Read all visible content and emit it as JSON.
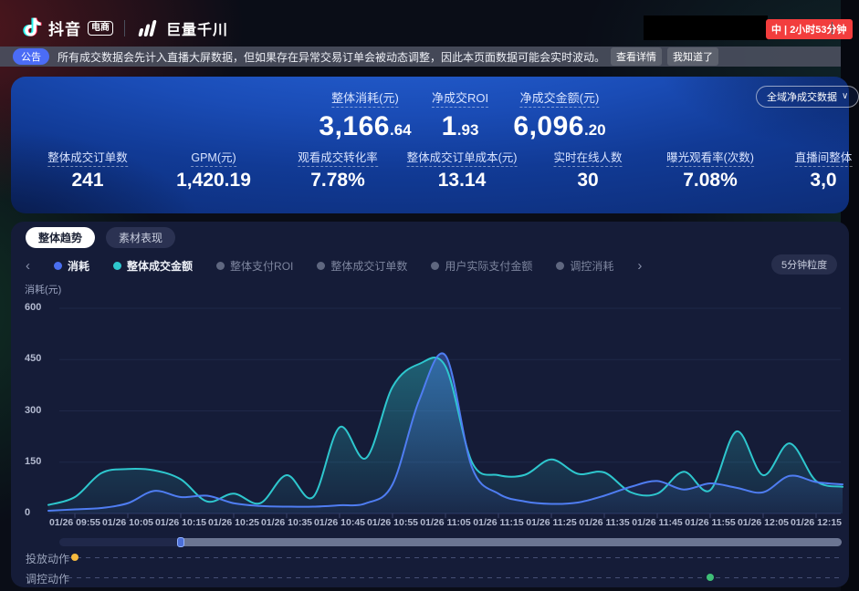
{
  "header": {
    "brand_douyin": "抖音",
    "brand_badge": "电商",
    "brand_qianchuan": "巨量千川",
    "live_badge": "中 | 2小时53分钟"
  },
  "notice": {
    "badge": "公告",
    "text": "所有成交数据会先计入直播大屏数据，但如果存在异常交易订单会被动态调整，因此本页面数据可能会实时波动。",
    "detail_button": "查看详情",
    "ack_button": "我知道了"
  },
  "overview": {
    "selector": "全域净成交数据",
    "primary": [
      {
        "label": "整体消耗(元)",
        "int": "3,166",
        "dec": ".64"
      },
      {
        "label": "净成交ROI",
        "int": "1",
        "dec": ".93"
      },
      {
        "label": "净成交金额(元)",
        "int": "6,096",
        "dec": ".20"
      }
    ],
    "secondary": [
      {
        "label": "整体成交订单数",
        "value": "241"
      },
      {
        "label": "GPM(元)",
        "value": "1,420.19"
      },
      {
        "label": "观看成交转化率",
        "value": "7.78%"
      },
      {
        "label": "整体成交订单成本(元)",
        "value": "13.14"
      },
      {
        "label": "实时在线人数",
        "value": "30"
      },
      {
        "label": "曝光观看率(次数)",
        "value": "7.08%"
      },
      {
        "label": "直播间整体",
        "value": "3,0"
      }
    ]
  },
  "tabs": [
    {
      "label": "整体趋势",
      "active": true
    },
    {
      "label": "素材表现",
      "active": false
    }
  ],
  "icons": {
    "left_arrow": "‹",
    "right_arrow": "›",
    "chevron_down": "∨"
  },
  "chart_data": {
    "type": "line",
    "ylabel": "消耗(元)",
    "ylim": [
      0,
      600
    ],
    "y_ticks": [
      0,
      150,
      300,
      450,
      600
    ],
    "granularity": "5分钟粒度",
    "x_start": "01/26 09:50",
    "x_step_minutes": 5,
    "x_tick_labels": [
      "01/26 09:55",
      "01/26 10:05",
      "01/26 10:15",
      "01/26 10:25",
      "01/26 10:35",
      "01/26 10:45",
      "01/26 10:55",
      "01/26 11:05",
      "01/26 11:15",
      "01/26 11:25",
      "01/26 11:35",
      "01/26 11:45",
      "01/26 11:55",
      "01/26 12:05",
      "01/26 12:15"
    ],
    "series": [
      {
        "name": "整体成交金额",
        "color": "#2ec7ce",
        "values": [
          25,
          48,
          118,
          130,
          126,
          100,
          35,
          58,
          30,
          112,
          48,
          252,
          162,
          370,
          437,
          430,
          150,
          112,
          113,
          158,
          116,
          120,
          62,
          58,
          122,
          68,
          240,
          112,
          205,
          95,
          78
        ]
      },
      {
        "name": "消耗",
        "color": "#4f7df2",
        "values": [
          8,
          12,
          16,
          30,
          66,
          48,
          52,
          30,
          22,
          20,
          20,
          24,
          30,
          85,
          330,
          462,
          135,
          58,
          35,
          28,
          32,
          52,
          78,
          95,
          70,
          88,
          75,
          62,
          110,
          92,
          85
        ]
      }
    ],
    "legend": [
      {
        "label": "消耗",
        "color": "#4a6ff0",
        "active": true
      },
      {
        "label": "整体成交金额",
        "color": "#2ec7ce",
        "active": true
      },
      {
        "label": "整体支付ROI",
        "color": "#5f6780",
        "active": false
      },
      {
        "label": "整体成交订单数",
        "color": "#5f6780",
        "active": false
      },
      {
        "label": "用户实际支付金额",
        "color": "#5f6780",
        "active": false
      },
      {
        "label": "调控消耗",
        "color": "#5f6780",
        "active": false
      }
    ]
  },
  "timeline": {
    "handle_index": 5
  },
  "actions": {
    "rows": [
      {
        "label": "投放动作",
        "marker_color": "#f5b93e",
        "marker_index": 1
      },
      {
        "label": "调控动作",
        "marker_color": "#3fbf77",
        "marker_index": 25
      }
    ]
  }
}
